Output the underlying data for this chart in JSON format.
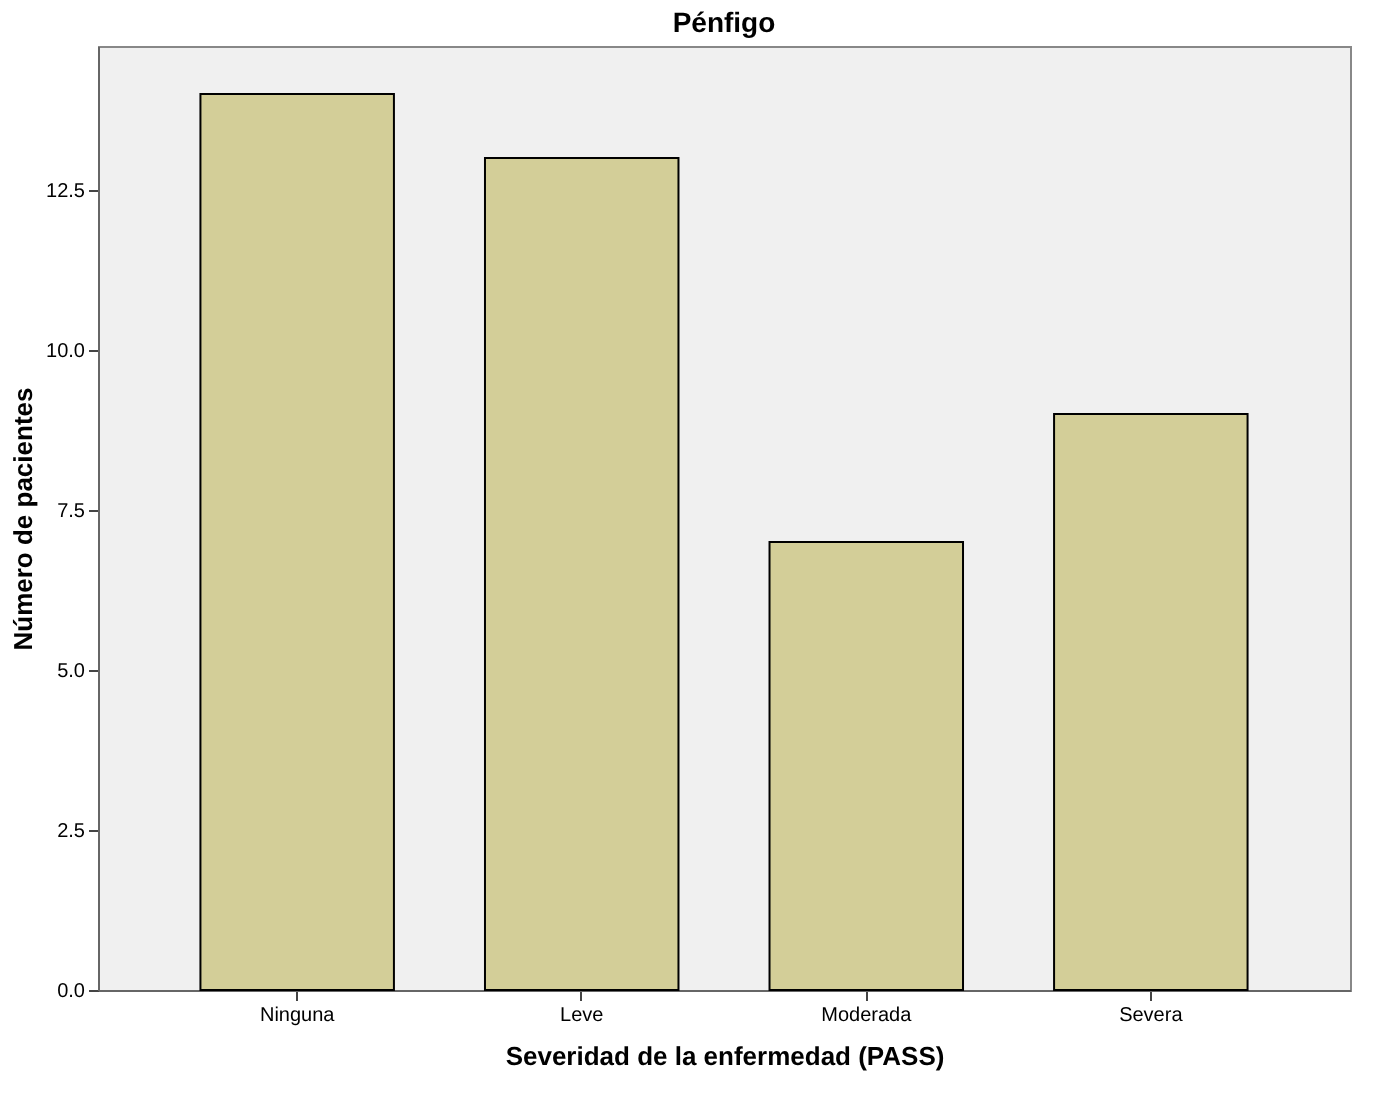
{
  "chart_data": {
    "type": "bar",
    "title": "Pénfigo",
    "xlabel": "Severidad de la enfermedad (PASS)",
    "ylabel": "Número de pacientes",
    "categories": [
      "Ninguna",
      "Leve",
      "Moderada",
      "Severa"
    ],
    "values": [
      14,
      13,
      7,
      9
    ],
    "color": "#d3ce98",
    "ylim": [
      0,
      14.75
    ],
    "yticks": [
      {
        "value": 0,
        "label": "0.0"
      },
      2.5,
      {
        "value": 5,
        "label": "5.0"
      },
      7.5,
      {
        "value": 10,
        "label": "10.0"
      },
      12.5
    ],
    "grid": false
  }
}
